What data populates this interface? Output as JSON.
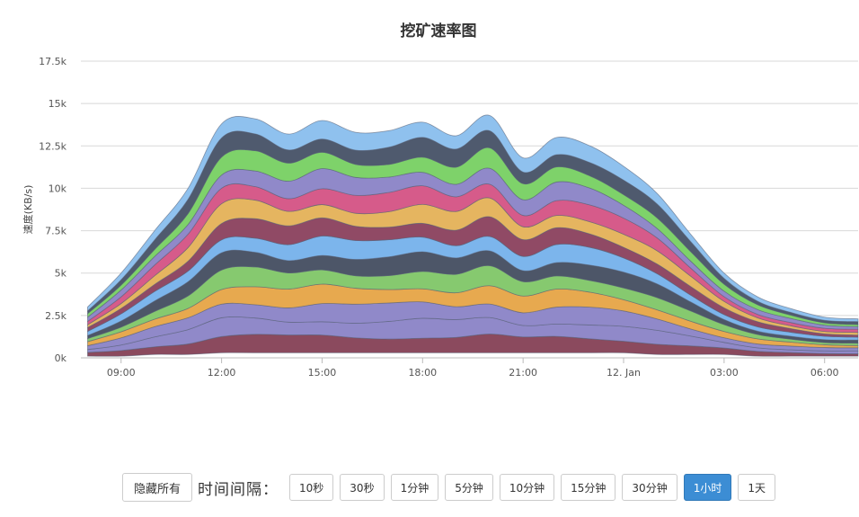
{
  "chart_data": {
    "type": "area",
    "stacking": "streamgraph",
    "title": "挖矿速率图",
    "xlabel": "",
    "ylabel": "速度(KB/s)",
    "ylim": [
      0,
      17500
    ],
    "yticks": [
      "0k",
      "2.5k",
      "5k",
      "7.5k",
      "10k",
      "12.5k",
      "15k",
      "17.5k"
    ],
    "ytick_values": [
      0,
      2500,
      5000,
      7500,
      10000,
      12500,
      15000,
      17500
    ],
    "xticks": [
      "09:00",
      "12:00",
      "15:00",
      "18:00",
      "21:00",
      "12. Jan",
      "03:00",
      "06:00"
    ],
    "xtick_hours": [
      9,
      12,
      15,
      18,
      21,
      24,
      27,
      30
    ],
    "xlim_hours": [
      7.8,
      31.0
    ],
    "x_hours": [
      8,
      9,
      10,
      11,
      12,
      13,
      14,
      15,
      16,
      17,
      18,
      19,
      20,
      21,
      22,
      23,
      24,
      25,
      26,
      27,
      28,
      29,
      30,
      31
    ],
    "top_envelope": [
      3000,
      5000,
      7500,
      10000,
      13800,
      14100,
      13200,
      14000,
      13300,
      13400,
      13900,
      13100,
      14300,
      11800,
      13000,
      12500,
      11300,
      9700,
      7300,
      5000,
      3600,
      2900,
      2400,
      2300
    ],
    "bottom_envelope": [
      100,
      100,
      200,
      200,
      300,
      300,
      300,
      300,
      300,
      300,
      300,
      300,
      300,
      300,
      300,
      300,
      300,
      200,
      200,
      200,
      100,
      100,
      100,
      100
    ],
    "grid": true,
    "legend": "none",
    "series_colors": [
      "#8b4a5e",
      "#9089c9",
      "#9089c9",
      "#e7a94f",
      "#86c96f",
      "#4d5668",
      "#7cb5ec",
      "#904a65",
      "#e5b560",
      "#d65b8a",
      "#9089c9",
      "#7ed26a",
      "#4f5a6e",
      "#8fc1ee"
    ]
  },
  "controls": {
    "hide_all_label": "隐藏所有",
    "interval_label": "时间间隔：",
    "intervals": [
      "10秒",
      "30秒",
      "1分钟",
      "5分钟",
      "10分钟",
      "15分钟",
      "30分钟",
      "1小时",
      "1天"
    ],
    "active_interval": "1小时"
  }
}
